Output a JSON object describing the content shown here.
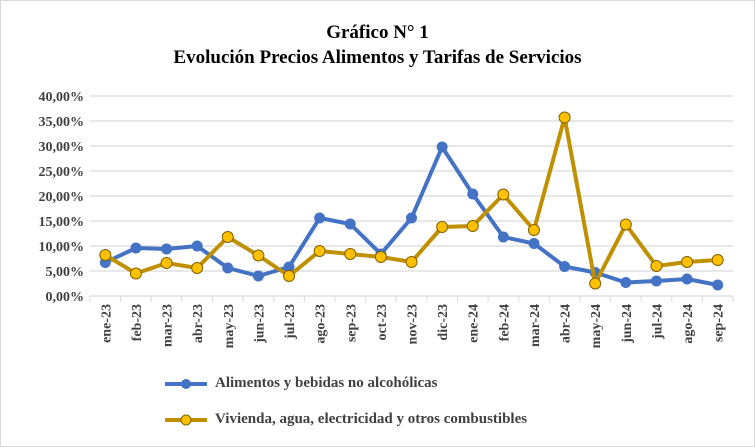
{
  "chart_data": {
    "type": "line",
    "title": "Gráfico  N° 1",
    "subtitle": "Evolución Precios Alimentos y Tarifas de Servicios",
    "xlabel": "",
    "ylabel": "",
    "ylim": [
      0,
      40
    ],
    "yticks": [
      "0,00%",
      "5,00%",
      "10,00%",
      "15,00%",
      "20,00%",
      "25,00%",
      "30,00%",
      "35,00%",
      "40,00%"
    ],
    "grid": true,
    "legend_position": "bottom",
    "categories": [
      "ene-23",
      "feb-23",
      "mar-23",
      "abr-23",
      "may-23",
      "jun-23",
      "jul-23",
      "ago-23",
      "sep-23",
      "oct-23",
      "nov-23",
      "dic-23",
      "ene-24",
      "feb-24",
      "mar-24",
      "abr-24",
      "may-24",
      "jun-24",
      "jul-24",
      "ago-24",
      "sep-24"
    ],
    "series": [
      {
        "name": "Alimentos y bebidas no alcohólicas",
        "color": "#4472C4",
        "values": [
          6.7,
          9.6,
          9.4,
          10.0,
          5.6,
          4.0,
          5.8,
          15.6,
          14.4,
          8.4,
          15.6,
          29.8,
          20.4,
          11.8,
          10.5,
          5.9,
          4.7,
          2.7,
          3.0,
          3.4,
          2.2
        ]
      },
      {
        "name": "Vivienda, agua, electricidad y otros combustibles",
        "color": "#BF9000",
        "marker_fill": "#FFC000",
        "values": [
          8.2,
          4.5,
          6.6,
          5.6,
          11.8,
          8.1,
          4.0,
          9.0,
          8.4,
          7.8,
          6.8,
          13.8,
          14.0,
          20.3,
          13.2,
          35.7,
          2.5,
          14.3,
          6.0,
          6.8,
          7.2
        ]
      }
    ]
  }
}
